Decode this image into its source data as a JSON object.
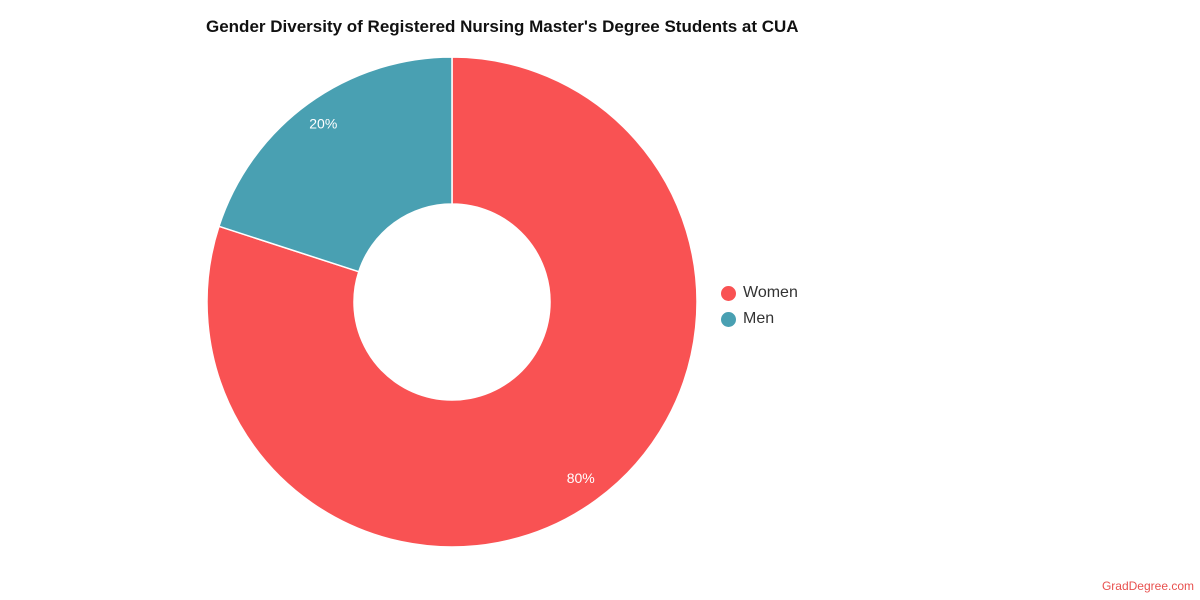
{
  "title": "Gender Diversity of Registered Nursing Master's Degree Students at CUA",
  "chart_data": {
    "type": "pie",
    "style": "donut",
    "title": "Gender Diversity of Registered Nursing Master's Degree Students at CUA",
    "unit": "%",
    "series": [
      {
        "name": "Women",
        "value": 80,
        "label": "80%",
        "color": "#f95253"
      },
      {
        "name": "Men",
        "value": 20,
        "label": "20%",
        "color": "#49a0b2"
      }
    ],
    "legend_position": "right"
  },
  "legend": {
    "items": [
      {
        "label": "Women",
        "color": "#f95253"
      },
      {
        "label": "Men",
        "color": "#49a0b2"
      }
    ]
  },
  "watermark": "GradDegree.com"
}
